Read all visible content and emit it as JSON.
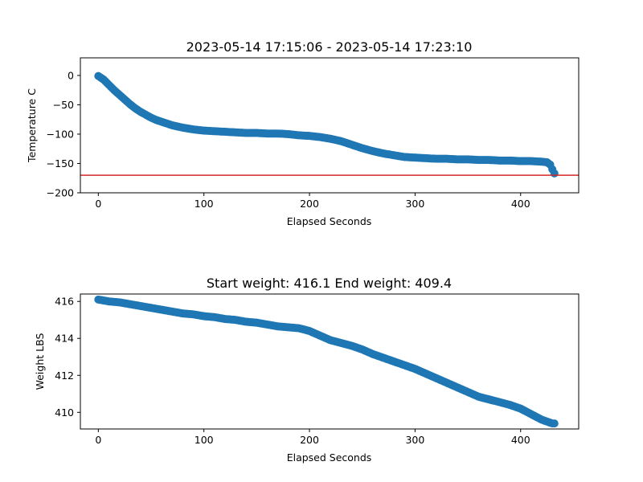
{
  "colors": {
    "marker": "#1f77b4",
    "threshold_line": "#d62728",
    "axes": "#000000",
    "background": "#ffffff"
  },
  "chart_data": [
    {
      "type": "scatter",
      "title": "2023-05-14 17:15:06 - 2023-05-14 17:23:10",
      "xlabel": "Elapsed Seconds",
      "ylabel": "Temperature C",
      "xlim": [
        -17,
        455
      ],
      "ylim": [
        -200,
        30
      ],
      "xticks": [
        0,
        100,
        200,
        300,
        400
      ],
      "yticks": [
        0,
        -50,
        -100,
        -150,
        -200
      ],
      "grid": false,
      "hline": {
        "y": -170,
        "color": "#d62728"
      },
      "x": [
        0,
        5,
        10,
        15,
        20,
        25,
        30,
        35,
        40,
        45,
        50,
        55,
        60,
        70,
        80,
        90,
        100,
        110,
        120,
        130,
        140,
        150,
        160,
        170,
        180,
        190,
        200,
        210,
        220,
        230,
        240,
        250,
        260,
        270,
        280,
        290,
        300,
        310,
        320,
        330,
        340,
        350,
        360,
        370,
        380,
        390,
        400,
        410,
        420,
        425,
        428,
        430,
        432
      ],
      "y": [
        -1,
        -7,
        -16,
        -25,
        -33,
        -41,
        -49,
        -56,
        -62,
        -67,
        -72,
        -76,
        -79,
        -85,
        -89,
        -92,
        -94,
        -95,
        -96,
        -97,
        -98,
        -98,
        -99,
        -99,
        -100,
        -102,
        -103,
        -105,
        -108,
        -112,
        -118,
        -124,
        -129,
        -133,
        -136,
        -139,
        -140,
        -141,
        -142,
        -142,
        -143,
        -143,
        -144,
        -144,
        -145,
        -145,
        -146,
        -146,
        -147,
        -148,
        -152,
        -160,
        -167
      ]
    },
    {
      "type": "scatter",
      "title": "Start weight: 416.1 End weight: 409.4",
      "xlabel": "Elapsed Seconds",
      "ylabel": "Weight LBS",
      "xlim": [
        -17,
        455
      ],
      "ylim": [
        409.1,
        416.4
      ],
      "xticks": [
        0,
        100,
        200,
        300,
        400
      ],
      "yticks": [
        416,
        414,
        412,
        410
      ],
      "grid": false,
      "x": [
        0,
        10,
        20,
        30,
        40,
        50,
        60,
        70,
        80,
        90,
        100,
        110,
        120,
        130,
        140,
        150,
        160,
        170,
        180,
        190,
        200,
        210,
        220,
        230,
        240,
        250,
        260,
        270,
        280,
        290,
        300,
        310,
        320,
        330,
        340,
        350,
        360,
        370,
        380,
        390,
        400,
        410,
        420,
        430,
        432
      ],
      "y": [
        416.1,
        416.0,
        415.95,
        415.85,
        415.75,
        415.65,
        415.55,
        415.45,
        415.35,
        415.3,
        415.2,
        415.15,
        415.05,
        415.0,
        414.9,
        414.85,
        414.75,
        414.65,
        414.6,
        414.55,
        414.4,
        414.15,
        413.9,
        413.75,
        413.6,
        413.4,
        413.15,
        412.95,
        412.75,
        412.55,
        412.35,
        412.1,
        411.85,
        411.6,
        411.35,
        411.1,
        410.85,
        410.7,
        410.55,
        410.4,
        410.2,
        409.9,
        409.6,
        409.4,
        409.4
      ]
    }
  ]
}
